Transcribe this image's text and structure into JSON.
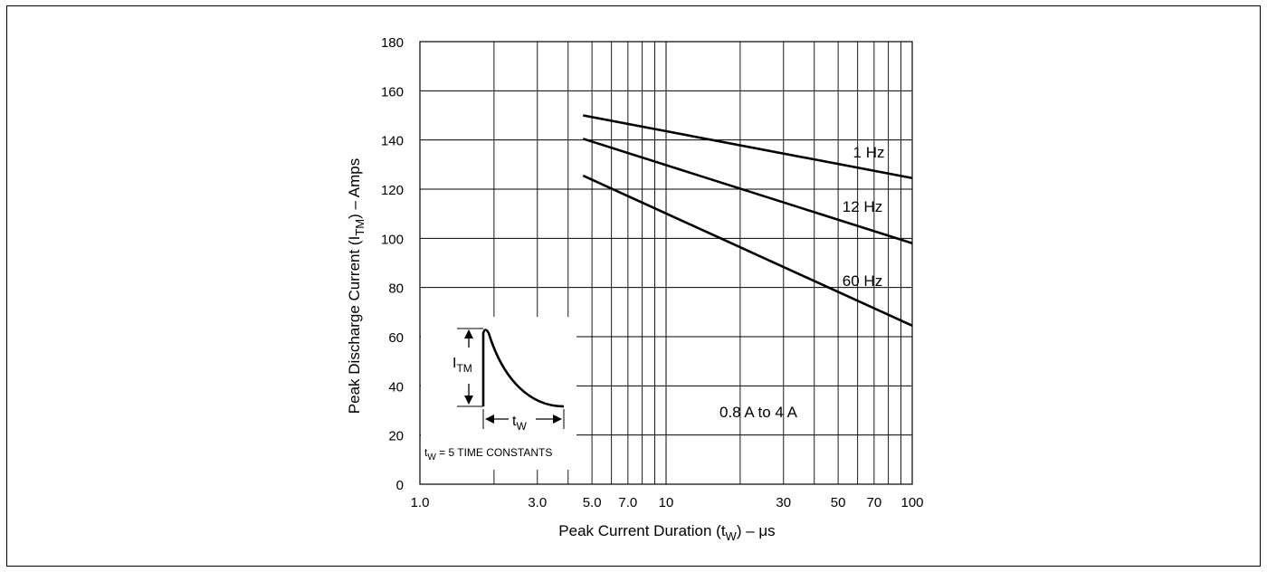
{
  "chart_data": {
    "type": "line",
    "x_scale": "log",
    "xlim": [
      1,
      100
    ],
    "ylim": [
      0,
      180
    ],
    "grid": true,
    "xlabel": {
      "main": "Peak Current Duration (t",
      "sub": "W",
      "tail": ") – μs"
    },
    "ylabel": {
      "main": "Peak Discharge Current (I",
      "sub": "TM",
      "tail": ") – Amps"
    },
    "x_ticks": [
      {
        "value": 1,
        "label": "1.0"
      },
      {
        "value": 3,
        "label": "3.0"
      },
      {
        "value": 5,
        "label": "5.0"
      },
      {
        "value": 7,
        "label": "7.0"
      },
      {
        "value": 10,
        "label": "10"
      },
      {
        "value": 30,
        "label": "30"
      },
      {
        "value": 50,
        "label": "50"
      },
      {
        "value": 70,
        "label": "70"
      },
      {
        "value": 100,
        "label": "100"
      }
    ],
    "y_ticks": [
      0,
      20,
      40,
      60,
      80,
      100,
      120,
      140,
      160,
      180
    ],
    "series": [
      {
        "name": "1 Hz",
        "x": [
          4.6,
          100
        ],
        "y": [
          150,
          124.5
        ]
      },
      {
        "name": "12 Hz",
        "x": [
          4.6,
          100
        ],
        "y": [
          140.5,
          98
        ]
      },
      {
        "name": "60 Hz",
        "x": [
          4.6,
          100
        ],
        "y": [
          125.5,
          64.5
        ]
      }
    ],
    "annotation": "0.8 A to 4 A",
    "inset": {
      "amplitude_label": {
        "main": "I",
        "sub": "TM"
      },
      "duration_label": {
        "main": "t",
        "sub": "W"
      },
      "caption": {
        "main": "t",
        "sub": "W",
        "tail": " = 5 TIME CONSTANTS"
      }
    }
  }
}
